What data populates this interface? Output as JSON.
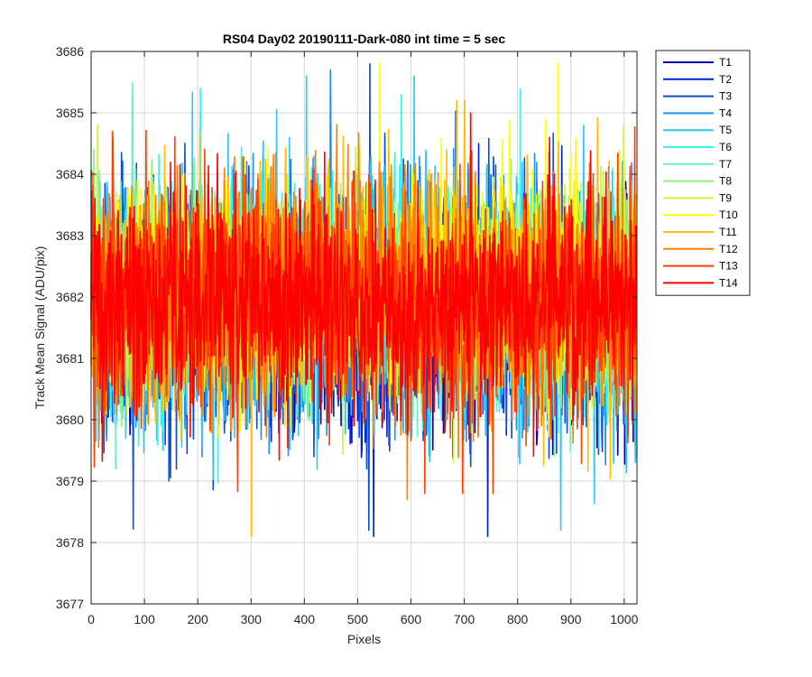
{
  "chart_data": {
    "type": "line",
    "title": "RS04 Day02 20190111-Dark-080 int time = 5 sec",
    "xlabel": "Pixels",
    "ylabel": "Track Mean Signal (ADU/pix)",
    "xlim": [
      0,
      1024
    ],
    "ylim": [
      3677,
      3686
    ],
    "xticks": [
      0,
      100,
      200,
      300,
      400,
      500,
      600,
      700,
      800,
      900,
      1000
    ],
    "yticks": [
      3677,
      3678,
      3679,
      3680,
      3681,
      3682,
      3683,
      3684,
      3685,
      3686
    ],
    "grid": true,
    "legend_position": "outside-top-right",
    "n_points": 1024,
    "series": [
      {
        "name": "T1",
        "color": "#0000b3",
        "mean": 3681.6,
        "min": 3677.8,
        "max": 3684.4
      },
      {
        "name": "T2",
        "color": "#0022cc",
        "mean": 3681.7,
        "min": 3678.1,
        "max": 3684.5
      },
      {
        "name": "T3",
        "color": "#0a4fd6",
        "mean": 3681.8,
        "min": 3678.2,
        "max": 3685.8
      },
      {
        "name": "T4",
        "color": "#1e90e6",
        "mean": 3681.9,
        "min": 3678.6,
        "max": 3685.7
      },
      {
        "name": "T5",
        "color": "#2cc8f0",
        "mean": 3681.9,
        "min": 3678.2,
        "max": 3685.6
      },
      {
        "name": "T6",
        "color": "#33f5f0",
        "mean": 3682.0,
        "min": 3678.9,
        "max": 3685.4
      },
      {
        "name": "T7",
        "color": "#66f2c8",
        "mean": 3682.0,
        "min": 3679.2,
        "max": 3685.5
      },
      {
        "name": "T8",
        "color": "#8ff07a",
        "mean": 3682.1,
        "min": 3679.4,
        "max": 3685.6
      },
      {
        "name": "T9",
        "color": "#d4f23a",
        "mean": 3682.1,
        "min": 3679.3,
        "max": 3685.9
      },
      {
        "name": "T10",
        "color": "#ffff00",
        "mean": 3682.2,
        "min": 3679.3,
        "max": 3685.8
      },
      {
        "name": "T11",
        "color": "#ffbf00",
        "mean": 3682.1,
        "min": 3678.1,
        "max": 3685.2
      },
      {
        "name": "T12",
        "color": "#ff8000",
        "mean": 3682.0,
        "min": 3678.7,
        "max": 3685.4
      },
      {
        "name": "T13",
        "color": "#ff4000",
        "mean": 3681.9,
        "min": 3678.8,
        "max": 3685.0
      },
      {
        "name": "T14",
        "color": "#ff0000",
        "mean": 3681.9,
        "min": 3678.9,
        "max": 3685.0
      }
    ]
  }
}
